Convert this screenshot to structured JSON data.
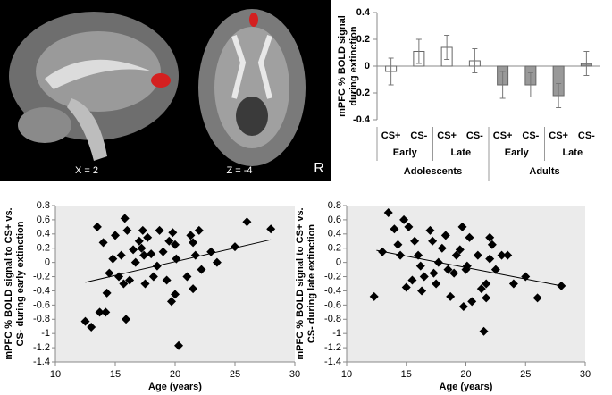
{
  "image_labels": [
    "X = 2",
    "Z = -4",
    "R"
  ],
  "chart_data": [
    {
      "type": "bar",
      "ylabel": [
        "mPFC % BOLD signal",
        "during extinction"
      ],
      "categories": [
        "CS+",
        "CS-",
        "CS+",
        "CS-",
        "CS+",
        "CS-",
        "CS+",
        "CS-"
      ],
      "subgroups": [
        "Early",
        "Late",
        "Early",
        "Late"
      ],
      "groups": [
        "Adolescents",
        "Adults"
      ],
      "values": [
        -0.04,
        0.11,
        0.14,
        0.04,
        -0.14,
        -0.14,
        -0.22,
        0.02
      ],
      "errors": [
        0.1,
        0.09,
        0.09,
        0.09,
        0.1,
        0.09,
        0.09,
        0.09
      ],
      "colors": [
        "#ffffff",
        "#ffffff",
        "#ffffff",
        "#ffffff",
        "#999999",
        "#999999",
        "#999999",
        "#999999"
      ],
      "ylim": [
        -0.4,
        0.4
      ],
      "yticks": [
        -0.4,
        -0.2,
        0,
        0.2,
        0.4
      ]
    },
    {
      "type": "scatter",
      "xlabel": "Age (years)",
      "ylabel": [
        "mPFC % BOLD signal to CS+ vs.",
        "CS- during  early extinction"
      ],
      "x": [
        12.5,
        13,
        13.5,
        13.7,
        14,
        14.2,
        14.3,
        14.5,
        14.8,
        15,
        15.3,
        15.5,
        15.7,
        15.8,
        15.9,
        16,
        16.2,
        16.5,
        16.7,
        17,
        17.2,
        17.3,
        17.4,
        17.5,
        17.7,
        18,
        18.2,
        18.5,
        18.7,
        19,
        19.3,
        19.5,
        19.7,
        19.8,
        20,
        20.1,
        20.3,
        21,
        21.3,
        21.5,
        21.7,
        22,
        22.2,
        23,
        23.5,
        25,
        26,
        28,
        21.5,
        20
      ],
      "y": [
        -0.83,
        -0.91,
        0.5,
        -0.7,
        0.28,
        -0.7,
        -0.43,
        -0.15,
        0.05,
        0.38,
        -0.2,
        0.1,
        -0.3,
        0.62,
        -0.8,
        0.45,
        -0.25,
        0.18,
        0,
        0.3,
        0.2,
        0.45,
        0.1,
        -0.3,
        0.35,
        0.12,
        -0.2,
        -0.05,
        0.45,
        0.15,
        -0.25,
        0.3,
        -0.55,
        0.42,
        -0.45,
        0.05,
        -1.17,
        -0.2,
        0.38,
        -0.37,
        0.1,
        0.45,
        -0.1,
        0.15,
        0,
        0.22,
        0.57,
        0.47,
        0.28,
        0.25
      ],
      "trendline": {
        "x": [
          12.5,
          28
        ],
        "y": [
          -0.28,
          0.32
        ]
      },
      "xlim": [
        10,
        30
      ],
      "xticks": [
        10,
        15,
        20,
        25,
        30
      ],
      "ylim": [
        -1.4,
        0.8
      ],
      "yticks": [
        -1.4,
        -1.2,
        -1,
        -0.8,
        -0.6,
        -0.4,
        -0.2,
        0,
        0.2,
        0.4,
        0.6,
        0.8
      ]
    },
    {
      "type": "scatter",
      "xlabel": "Age (years)",
      "ylabel": [
        "mPFC % BOLD signal to CS+ vs.",
        "CS- during  late extinction"
      ],
      "x": [
        12.3,
        13,
        13.5,
        14,
        14.3,
        14.5,
        14.8,
        15,
        15.2,
        15.5,
        15.7,
        16,
        16.2,
        16.3,
        16.5,
        17,
        17.2,
        17.3,
        17.5,
        17.7,
        18,
        18.3,
        18.5,
        18.7,
        19,
        19.2,
        19.5,
        19.7,
        19.8,
        20,
        20.1,
        20.3,
        20.5,
        21,
        21.3,
        21.5,
        21.7,
        22,
        22.2,
        22.5,
        23,
        23.5,
        24,
        25,
        26,
        28,
        21.7,
        22
      ],
      "y": [
        -0.48,
        0.15,
        0.7,
        0.47,
        0.25,
        0.1,
        0.6,
        -0.35,
        0.5,
        -0.25,
        0.3,
        0.1,
        -0.05,
        -0.4,
        -0.2,
        0.45,
        0.3,
        -0.15,
        -0.3,
        0,
        0.2,
        0.38,
        -0.1,
        -0.48,
        -0.15,
        0.1,
        0.18,
        0.5,
        -0.62,
        -0.1,
        -0.05,
        0.35,
        -0.55,
        0.1,
        -0.37,
        -0.97,
        -0.5,
        0.35,
        0.25,
        -0.1,
        0.1,
        0.1,
        -0.3,
        -0.2,
        -0.5,
        -0.33,
        -0.3,
        0.05
      ],
      "trendline": {
        "x": [
          12.5,
          28
        ],
        "y": [
          0.17,
          -0.33
        ]
      },
      "xlim": [
        10,
        30
      ],
      "xticks": [
        10,
        15,
        20,
        25,
        30
      ],
      "ylim": [
        -1.4,
        0.8
      ],
      "yticks": [
        -1.4,
        -1.2,
        -1,
        -0.8,
        -0.6,
        -0.4,
        -0.2,
        0,
        0.2,
        0.4,
        0.6,
        0.8
      ]
    }
  ]
}
